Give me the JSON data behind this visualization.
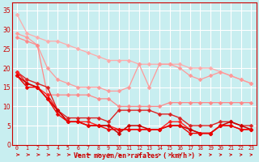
{
  "background_color": "#c8eef0",
  "grid_color": "#ffffff",
  "xlabel": "Vent moyen/en rafales ( km/h )",
  "xlabel_color": "#cc0000",
  "tick_color": "#cc0000",
  "ylim": [
    0,
    37
  ],
  "xlim": [
    -0.5,
    23.5
  ],
  "yticks": [
    0,
    5,
    10,
    15,
    20,
    25,
    30,
    35
  ],
  "xticks": [
    0,
    1,
    2,
    3,
    4,
    5,
    6,
    7,
    8,
    9,
    10,
    11,
    12,
    13,
    14,
    15,
    16,
    17,
    18,
    19,
    20,
    21,
    22,
    23
  ],
  "lines": [
    {
      "x": [
        0,
        1,
        2,
        3,
        4,
        5,
        6,
        7,
        8,
        9,
        10,
        11,
        12,
        13,
        14,
        15,
        16,
        17,
        18,
        19,
        20,
        21,
        22,
        23
      ],
      "y": [
        34,
        29,
        28,
        27,
        27,
        26,
        25,
        24,
        23,
        22,
        22,
        22,
        21,
        21,
        21,
        21,
        21,
        20,
        20,
        20,
        19,
        18,
        17,
        16
      ],
      "color": "#ffaaaa",
      "marker": "D",
      "markersize": 2.5,
      "linewidth": 0.9
    },
    {
      "x": [
        0,
        1,
        2,
        3,
        4,
        5,
        6,
        7,
        8,
        9,
        10,
        11,
        12,
        13,
        14,
        15,
        16,
        17,
        18,
        19,
        20,
        21,
        22,
        23
      ],
      "y": [
        29,
        28,
        26,
        20,
        17,
        16,
        15,
        15,
        15,
        14,
        14,
        15,
        21,
        15,
        21,
        21,
        20,
        18,
        17,
        18,
        19,
        18,
        17,
        16
      ],
      "color": "#ff9999",
      "marker": "D",
      "markersize": 2.5,
      "linewidth": 0.9
    },
    {
      "x": [
        0,
        1,
        2,
        3,
        4,
        5,
        6,
        7,
        8,
        9,
        10,
        11,
        12,
        13,
        14,
        15,
        16,
        17,
        18,
        19,
        20,
        21,
        22,
        23
      ],
      "y": [
        28,
        27,
        26,
        13,
        13,
        13,
        13,
        13,
        12,
        12,
        10,
        10,
        10,
        10,
        10,
        11,
        11,
        11,
        11,
        11,
        11,
        11,
        11,
        11
      ],
      "color": "#ff8888",
      "marker": "D",
      "markersize": 2.5,
      "linewidth": 0.9
    },
    {
      "x": [
        0,
        1,
        2,
        3,
        4,
        5,
        6,
        7,
        8,
        9,
        10,
        11,
        12,
        13,
        14,
        15,
        16,
        17,
        18,
        19,
        20,
        21,
        22,
        23
      ],
      "y": [
        19,
        17,
        16,
        15,
        9,
        7,
        7,
        7,
        7,
        6,
        9,
        9,
        9,
        9,
        8,
        8,
        7,
        5,
        5,
        5,
        6,
        6,
        5,
        5
      ],
      "color": "#dd2222",
      "marker": "D",
      "markersize": 2.5,
      "linewidth": 1.0
    },
    {
      "x": [
        0,
        1,
        2,
        3,
        4,
        5,
        6,
        7,
        8,
        9,
        10,
        11,
        12,
        13,
        14,
        15,
        16,
        17,
        18,
        19,
        20,
        21,
        22,
        23
      ],
      "y": [
        19,
        16,
        15,
        13,
        9,
        6,
        6,
        6,
        5,
        5,
        4,
        4,
        4,
        4,
        4,
        6,
        6,
        4,
        3,
        3,
        5,
        5,
        4,
        4
      ],
      "color": "#ff2222",
      "marker": "D",
      "markersize": 2.5,
      "linewidth": 1.0
    },
    {
      "x": [
        0,
        1,
        2,
        3,
        4,
        5,
        6,
        7,
        8,
        9,
        10,
        11,
        12,
        13,
        14,
        15,
        16,
        17,
        18,
        19,
        20,
        21,
        22,
        23
      ],
      "y": [
        18,
        16,
        15,
        12,
        9,
        6,
        6,
        5,
        5,
        5,
        3,
        5,
        5,
        4,
        4,
        5,
        5,
        4,
        3,
        3,
        5,
        6,
        5,
        4
      ],
      "color": "#cc0000",
      "marker": "D",
      "markersize": 2.5,
      "linewidth": 1.1
    },
    {
      "x": [
        0,
        1,
        2,
        3,
        4,
        5,
        6,
        7,
        8,
        9,
        10,
        11,
        12,
        13,
        14,
        15,
        16,
        17,
        18,
        19,
        20,
        21,
        22,
        23
      ],
      "y": [
        18,
        15,
        15,
        12,
        8,
        6,
        6,
        5,
        5,
        4,
        4,
        4,
        4,
        4,
        4,
        5,
        5,
        3,
        3,
        3,
        5,
        5,
        4,
        4
      ],
      "color": "#ee0000",
      "marker": "D",
      "markersize": 2.5,
      "linewidth": 1.0
    }
  ]
}
